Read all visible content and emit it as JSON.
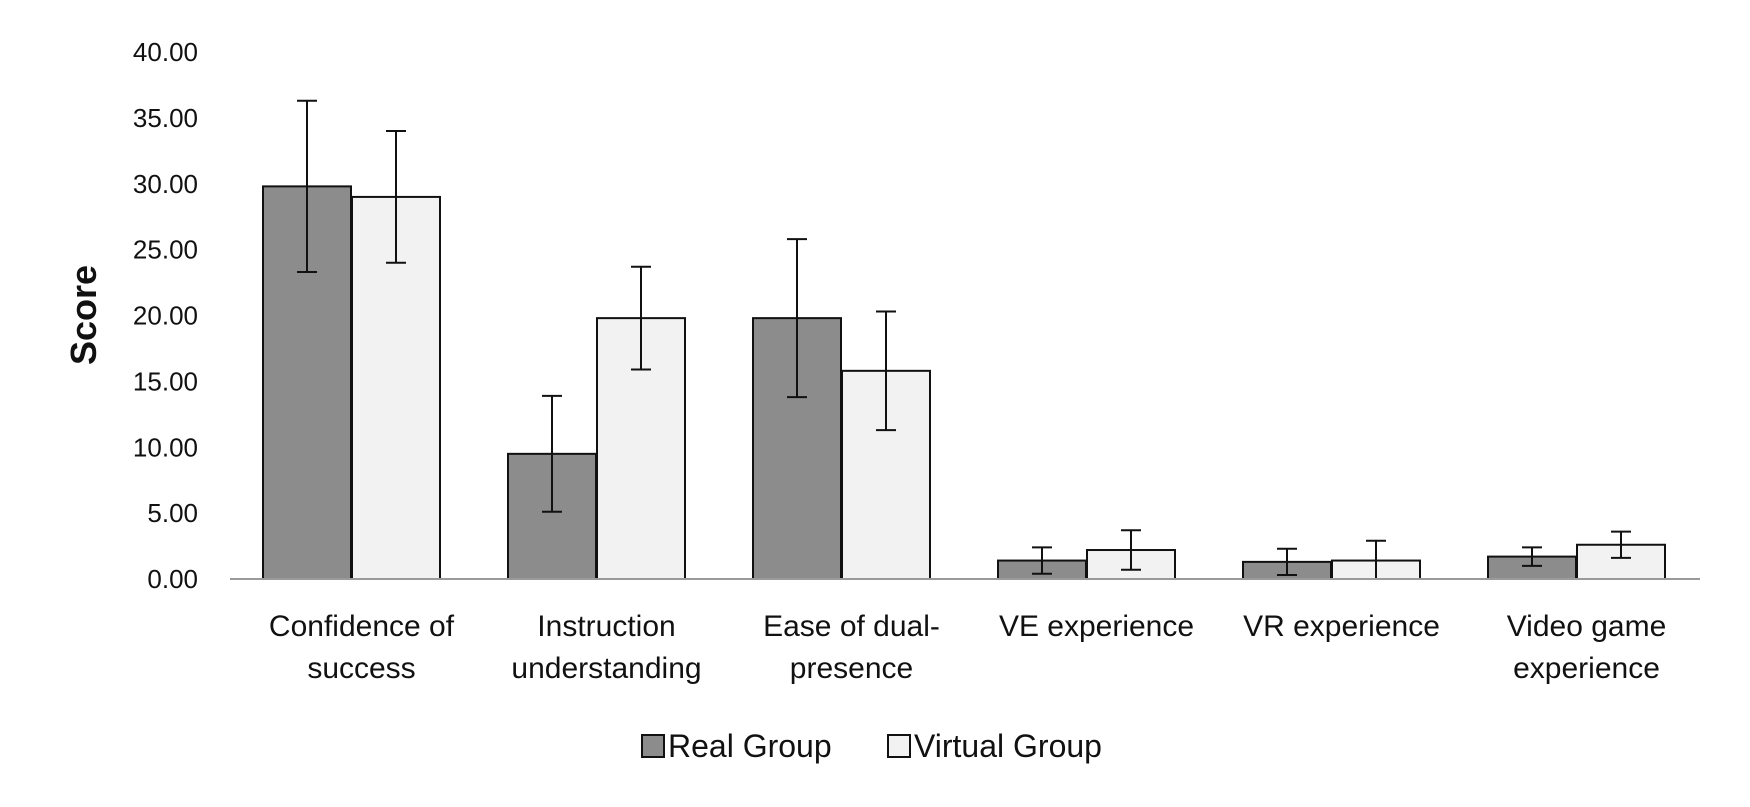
{
  "chart_data": {
    "type": "bar",
    "title": "",
    "xlabel": "",
    "ylabel": "Score",
    "ylim": [
      0,
      40
    ],
    "yticks": [
      "0.00",
      "5.00",
      "10.00",
      "15.00",
      "20.00",
      "25.00",
      "30.00",
      "35.00",
      "40.00"
    ],
    "grid": false,
    "legend_position": "bottom",
    "categories": [
      [
        "Confidence of",
        "success"
      ],
      [
        "Instruction",
        "understanding"
      ],
      [
        "Ease of dual-",
        "presence"
      ],
      [
        "VE experience"
      ],
      [
        "VR experience"
      ],
      [
        "Video game",
        "experience"
      ]
    ],
    "series": [
      {
        "name": "Real Group",
        "color": "#8c8c8c",
        "values": [
          29.8,
          9.5,
          19.8,
          1.4,
          1.3,
          1.7
        ],
        "error": [
          6.5,
          4.4,
          6.0,
          1.0,
          1.0,
          0.7
        ]
      },
      {
        "name": "Virtual Group",
        "color": "#f2f2f2",
        "values": [
          29.0,
          19.8,
          15.8,
          2.2,
          1.4,
          2.6
        ],
        "error": [
          5.0,
          3.9,
          4.5,
          1.5,
          1.5,
          1.0
        ]
      }
    ]
  }
}
